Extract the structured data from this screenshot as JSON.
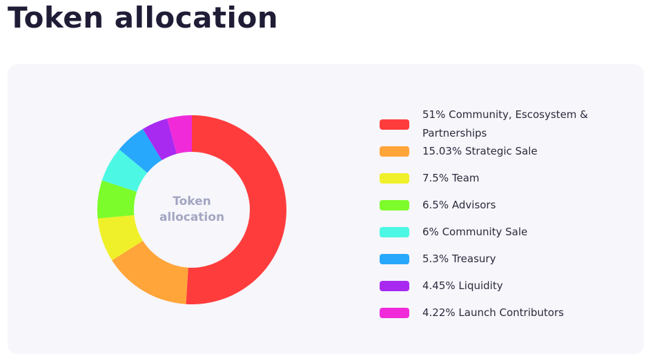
{
  "page": {
    "title": "Token allocation"
  },
  "donut": {
    "center_line1": "Token",
    "center_line2": "allocation"
  },
  "legend": {
    "items": [
      {
        "label": "51% Community, Escosystem & Partnerships",
        "color": "#ff3c3c"
      },
      {
        "label": "15.03% Strategic Sale",
        "color": "#ffa53a"
      },
      {
        "label": "7.5% Team",
        "color": "#f0f02a"
      },
      {
        "label": "6.5% Advisors",
        "color": "#7cfc2a"
      },
      {
        "label": "6% Community Sale",
        "color": "#4cf8e4"
      },
      {
        "label": "5.3% Treasury",
        "color": "#28a8fc"
      },
      {
        "label": "4.45% Liquidity",
        "color": "#a82af0"
      },
      {
        "label": "4.22% Launch Contributors",
        "color": "#f02ad8"
      }
    ]
  },
  "chart_data": {
    "type": "pie",
    "subtype": "donut",
    "title": "Token allocation",
    "center_label": "Token allocation",
    "categories": [
      "Community, Escosystem & Partnerships",
      "Strategic Sale",
      "Team",
      "Advisors",
      "Community Sale",
      "Treasury",
      "Liquidity",
      "Launch Contributors"
    ],
    "values": [
      51,
      15.03,
      7.5,
      6.5,
      6,
      5.3,
      4.45,
      4.22
    ],
    "unit": "%",
    "colors": [
      "#ff3c3c",
      "#ffa53a",
      "#f0f02a",
      "#7cfc2a",
      "#4cf8e4",
      "#28a8fc",
      "#a82af0",
      "#f02ad8"
    ],
    "start_angle": "12 o'clock, clockwise",
    "legend_position": "right"
  }
}
